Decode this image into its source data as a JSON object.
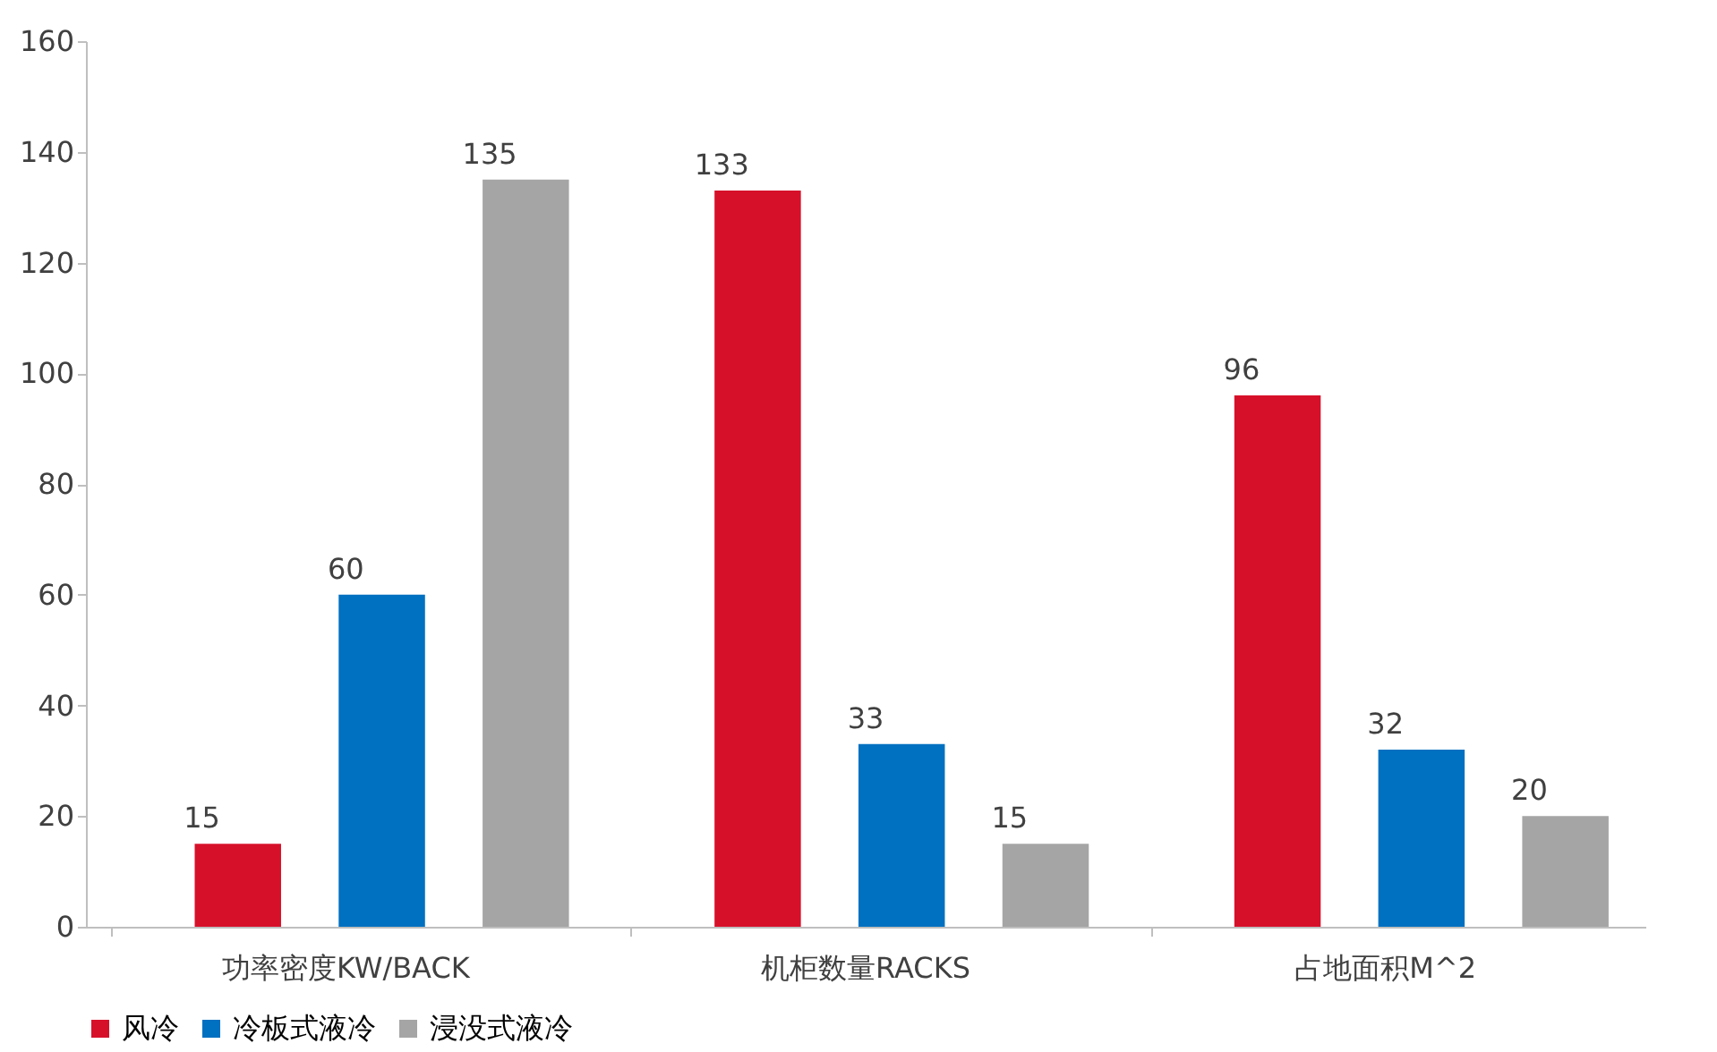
{
  "chart_data": {
    "type": "bar",
    "categories": [
      "功率密度KW/BACK",
      "机柜数量RACKS",
      "占地面积M^2"
    ],
    "series": [
      {
        "name": "风冷",
        "color": "#d7102a",
        "values": [
          15,
          133,
          96
        ]
      },
      {
        "name": "冷板式液冷",
        "color": "#0070c0",
        "values": [
          60,
          33,
          32
        ]
      },
      {
        "name": "浸没式液冷",
        "color": "#a5a5a5",
        "values": [
          135,
          15,
          20
        ]
      }
    ],
    "ylim": [
      0,
      160
    ],
    "yticks": [
      0,
      20,
      40,
      60,
      80,
      100,
      120,
      140,
      160
    ],
    "data_labels": true,
    "grid": false,
    "legend": "bottom"
  }
}
